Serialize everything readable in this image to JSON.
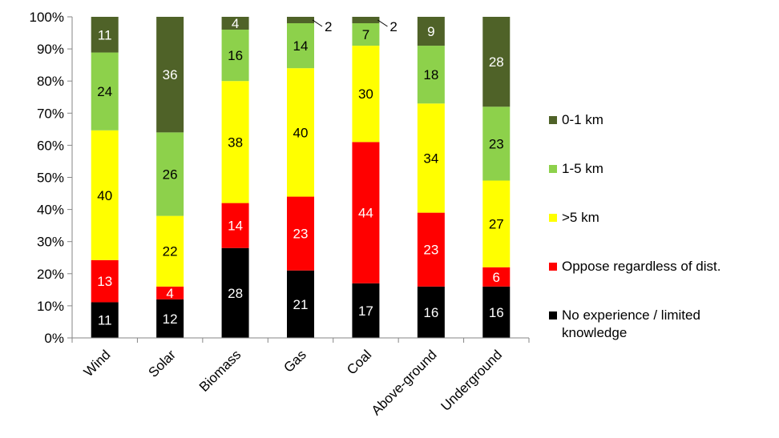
{
  "chart_data": {
    "type": "bar",
    "stacked": true,
    "percent_stacked": true,
    "categories": [
      "Wind",
      "Solar",
      "Biomass",
      "Gas",
      "Coal",
      "Above-ground",
      "Underground"
    ],
    "series": [
      {
        "name": "No experience / limited knowledge",
        "color": "#000000",
        "label_color": "#ffffff",
        "values": [
          11,
          12,
          28,
          21,
          17,
          16,
          16
        ]
      },
      {
        "name": "Oppose regardless of dist.",
        "color": "#ff0000",
        "label_color": "#ffffff",
        "values": [
          13,
          4,
          14,
          23,
          44,
          23,
          6
        ]
      },
      {
        "name": ">5 km",
        "color": "#ffff00",
        "label_color": "#000000",
        "values": [
          40,
          22,
          38,
          40,
          30,
          34,
          27
        ]
      },
      {
        "name": "1-5 km",
        "color": "#8dd14b",
        "label_color": "#000000",
        "values": [
          24,
          26,
          16,
          14,
          7,
          18,
          23
        ]
      },
      {
        "name": "0-1 km",
        "color": "#4f6228",
        "label_color": "#ffffff",
        "values": [
          11,
          36,
          4,
          2,
          2,
          9,
          28
        ]
      }
    ],
    "yticks": [
      "0%",
      "10%",
      "20%",
      "30%",
      "40%",
      "50%",
      "60%",
      "70%",
      "80%",
      "90%",
      "100%"
    ],
    "ylim": [
      0,
      100
    ],
    "title": "",
    "xlabel": "",
    "ylabel": "",
    "grid": false,
    "legend_position": "right"
  }
}
